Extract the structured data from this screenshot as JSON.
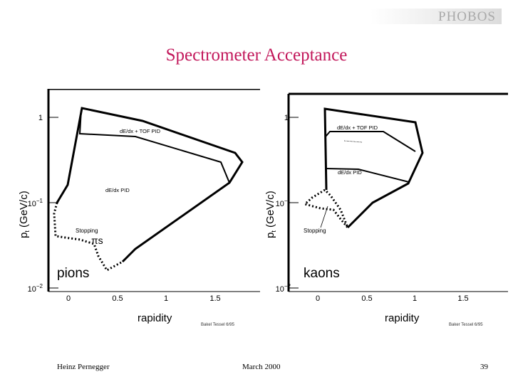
{
  "header": {
    "logo_text": "PHOBOS",
    "title": "Spectrometer Acceptance"
  },
  "chart_data": [
    {
      "type": "line",
      "panel_label": "pions",
      "xlabel": "rapidity",
      "ylabel": "pt (GeV/c)",
      "y_scale": "log",
      "xlim": [
        -0.3,
        1.9
      ],
      "ylim": [
        0.01,
        2
      ],
      "x_ticks": [
        "0",
        "0.5",
        "1",
        "1.5"
      ],
      "y_ticks": [
        "1",
        "10^-1",
        "10^-2"
      ],
      "regions": [
        {
          "label": "dE/dx + TOF PID",
          "style": "solid",
          "points": [
            [
              0.13,
              1.25
            ],
            [
              0.12,
              0.7
            ],
            [
              0.6,
              0.63
            ],
            [
              1.68,
              0.3
            ]
          ]
        },
        {
          "label": "dE/dx PID",
          "style": "solid",
          "points": [
            [
              -0.12,
              0.085
            ],
            [
              0.12,
              1.25
            ],
            [
              0.95,
              0.82
            ],
            [
              1.82,
              0.44
            ],
            [
              1.75,
              0.18
            ],
            [
              0.72,
              0.045
            ],
            [
              0.6,
              0.03
            ]
          ]
        },
        {
          "label": "Stopping πs",
          "style": "dotted",
          "points": [
            [
              -0.12,
              0.085
            ],
            [
              -0.16,
              0.07
            ],
            [
              -0.18,
              0.03
            ],
            [
              0.0,
              0.028
            ],
            [
              0.1,
              0.028
            ],
            [
              0.17,
              0.018
            ],
            [
              0.3,
              0.015
            ],
            [
              0.58,
              0.031
            ]
          ]
        }
      ],
      "annotations": [
        "dE/dx + TOF PID",
        "dE/dx PID",
        "Stopping",
        "πs"
      ],
      "credit": "Bakel Tessel 6/95"
    },
    {
      "type": "line",
      "panel_label": "kaons",
      "xlabel": "rapidity",
      "ylabel": "pt (GeV/c)",
      "y_scale": "log",
      "xlim": [
        -0.3,
        1.9
      ],
      "ylim": [
        0.01,
        2
      ],
      "x_ticks": [
        "0",
        "0.5",
        "1",
        "1.5"
      ],
      "y_ticks": [
        "1",
        "10^-1",
        "10^-2"
      ],
      "regions": [
        {
          "label": "dE/dx + TOF PID",
          "style": "solid",
          "points": [
            [
              0.1,
              1.2
            ],
            [
              0.1,
              0.65
            ],
            [
              0.5,
              0.65
            ],
            [
              1.06,
              0.38
            ],
            [
              1.0,
              0.32
            ],
            [
              0.7,
              0.17
            ],
            [
              0.45,
              0.06
            ]
          ]
        },
        {
          "label": "dE/dx PID",
          "style": "solid",
          "points": [
            [
              0.1,
              0.65
            ],
            [
              0.1,
              0.23
            ],
            [
              0.47,
              0.21
            ],
            [
              1.0,
              0.13
            ],
            [
              1.03,
              0.32
            ]
          ]
        },
        {
          "label": "Stopping",
          "style": "dotted",
          "points": [
            [
              0.1,
              0.13
            ],
            [
              -0.1,
              0.09
            ],
            [
              -0.15,
              0.085
            ],
            [
              0.07,
              0.065
            ],
            [
              0.22,
              0.06
            ],
            [
              0.35,
              0.03
            ],
            [
              0.35,
              0.04
            ],
            [
              0.18,
              0.09
            ],
            [
              0.1,
              0.13
            ]
          ]
        }
      ],
      "annotations": [
        "dE/dx + TOF PID",
        "dE/dx PID",
        "Stopping"
      ],
      "credit": "Baker Tessel 6/95"
    }
  ],
  "footer": {
    "author": "Heinz Pernegger",
    "date": "March 2000",
    "page": "39"
  }
}
